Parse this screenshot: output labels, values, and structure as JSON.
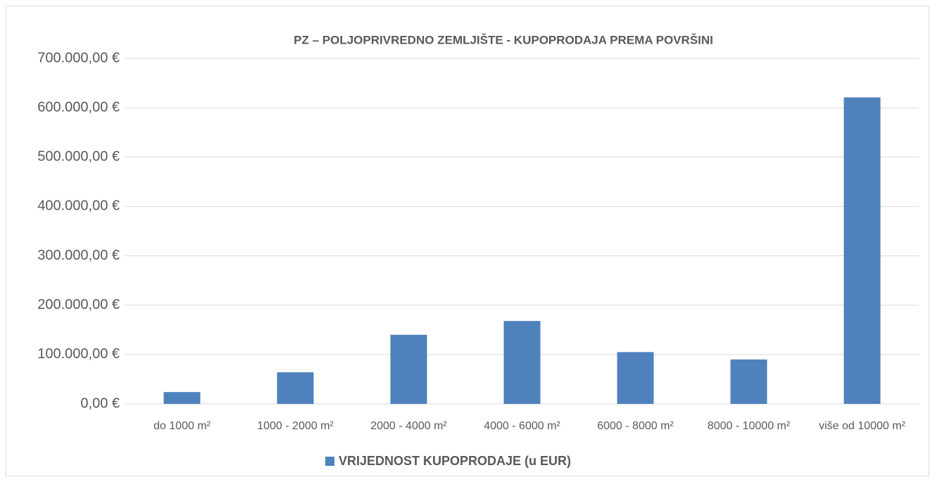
{
  "chart_data": {
    "type": "bar",
    "title": "PZ – POLJOPRIVREDNO ZEMLJIŠTE - KUPOPRODAJA PREMA POVRŠINI",
    "categories": [
      "do 1000 m²",
      "1000 - 2000 m²",
      "2000 - 4000 m²",
      "4000 - 6000 m²",
      "6000 - 8000 m²",
      "8000 - 10000 m²",
      "više od 10000 m²"
    ],
    "series": [
      {
        "name": "VRIJEDNOST KUPOPRODAJE (u EUR)",
        "color": "#4f81bd",
        "values": [
          24000,
          64000,
          140000,
          168000,
          105000,
          90000,
          621000
        ]
      }
    ],
    "ylim": [
      0,
      700000
    ],
    "yticks": [
      {
        "value": 0,
        "label": "0,00 €"
      },
      {
        "value": 100000,
        "label": "100.000,00 €"
      },
      {
        "value": 200000,
        "label": "200.000,00 €"
      },
      {
        "value": 300000,
        "label": "300.000,00 €"
      },
      {
        "value": 400000,
        "label": "400.000,00 €"
      },
      {
        "value": 500000,
        "label": "500.000,00 €"
      },
      {
        "value": 600000,
        "label": "600.000,00 €"
      },
      {
        "value": 700000,
        "label": "700.000,00 €"
      }
    ],
    "grid": true,
    "legend": "bottom"
  }
}
